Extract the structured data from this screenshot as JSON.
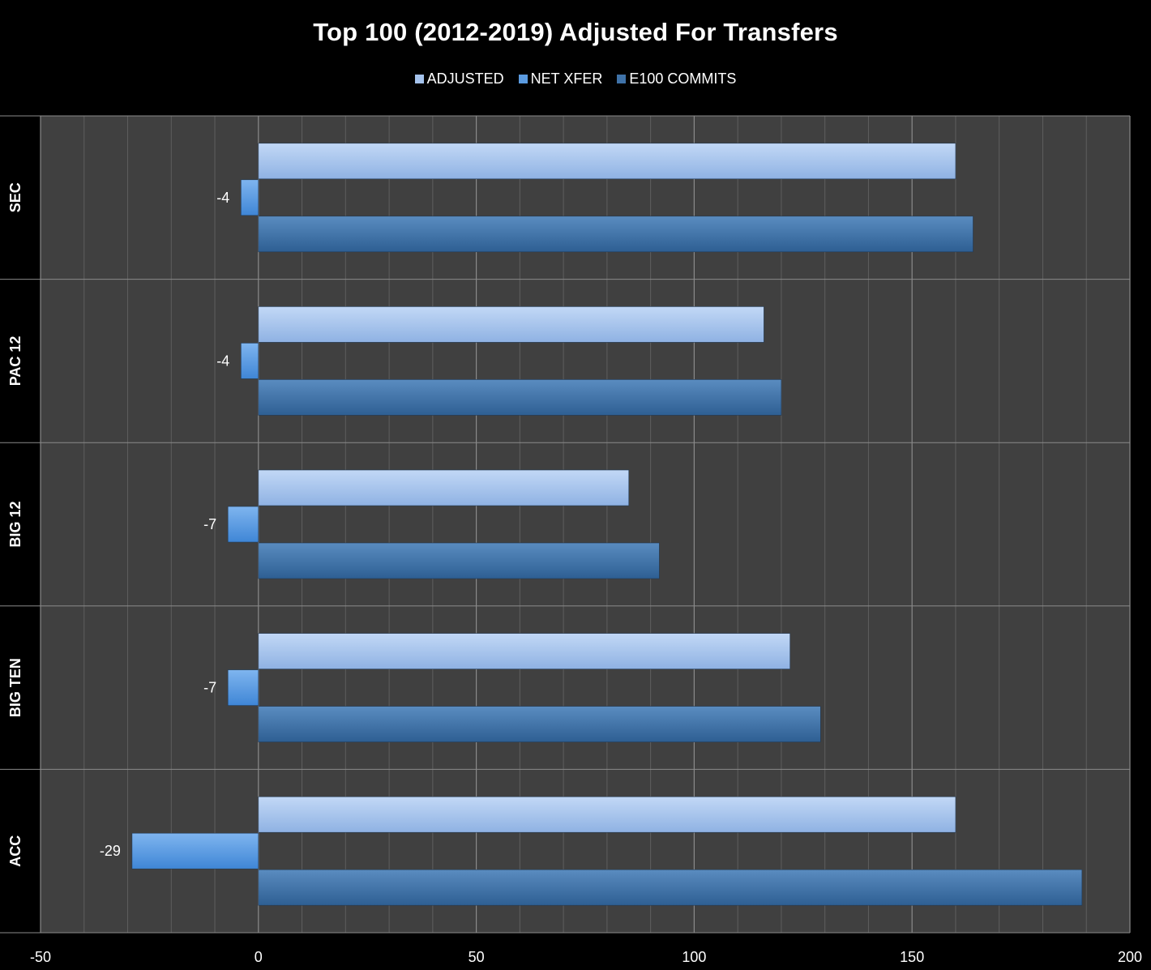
{
  "chart_data": {
    "type": "bar",
    "orientation": "horizontal",
    "title": "Top 100  (2012-2019) Adjusted For Transfers",
    "categories": [
      "SEC",
      "PAC 12",
      "BIG 12",
      "BIG TEN",
      "ACC"
    ],
    "series": [
      {
        "name": "ADJUSTED",
        "values": [
          160,
          116,
          85,
          122,
          160
        ],
        "color": "#a4c2ec"
      },
      {
        "name": "NET XFER",
        "values": [
          -4,
          -4,
          -7,
          -7,
          -29
        ],
        "color": "#5b9be0"
      },
      {
        "name": "E100 COMMITS",
        "values": [
          164,
          120,
          92,
          129,
          189
        ],
        "color": "#3f72a8"
      }
    ],
    "data_labels_series": "NET XFER",
    "xlim": [
      -50,
      200
    ],
    "x_ticks": [
      "-50",
      "0",
      "50",
      "100",
      "150",
      "200"
    ],
    "x_minor_step": 10,
    "grid": true,
    "legend_position": "top",
    "colors": {
      "background": "#000000",
      "plot_area": "#404040",
      "grid": "#7a7a7a",
      "text": "#ffffff"
    }
  }
}
